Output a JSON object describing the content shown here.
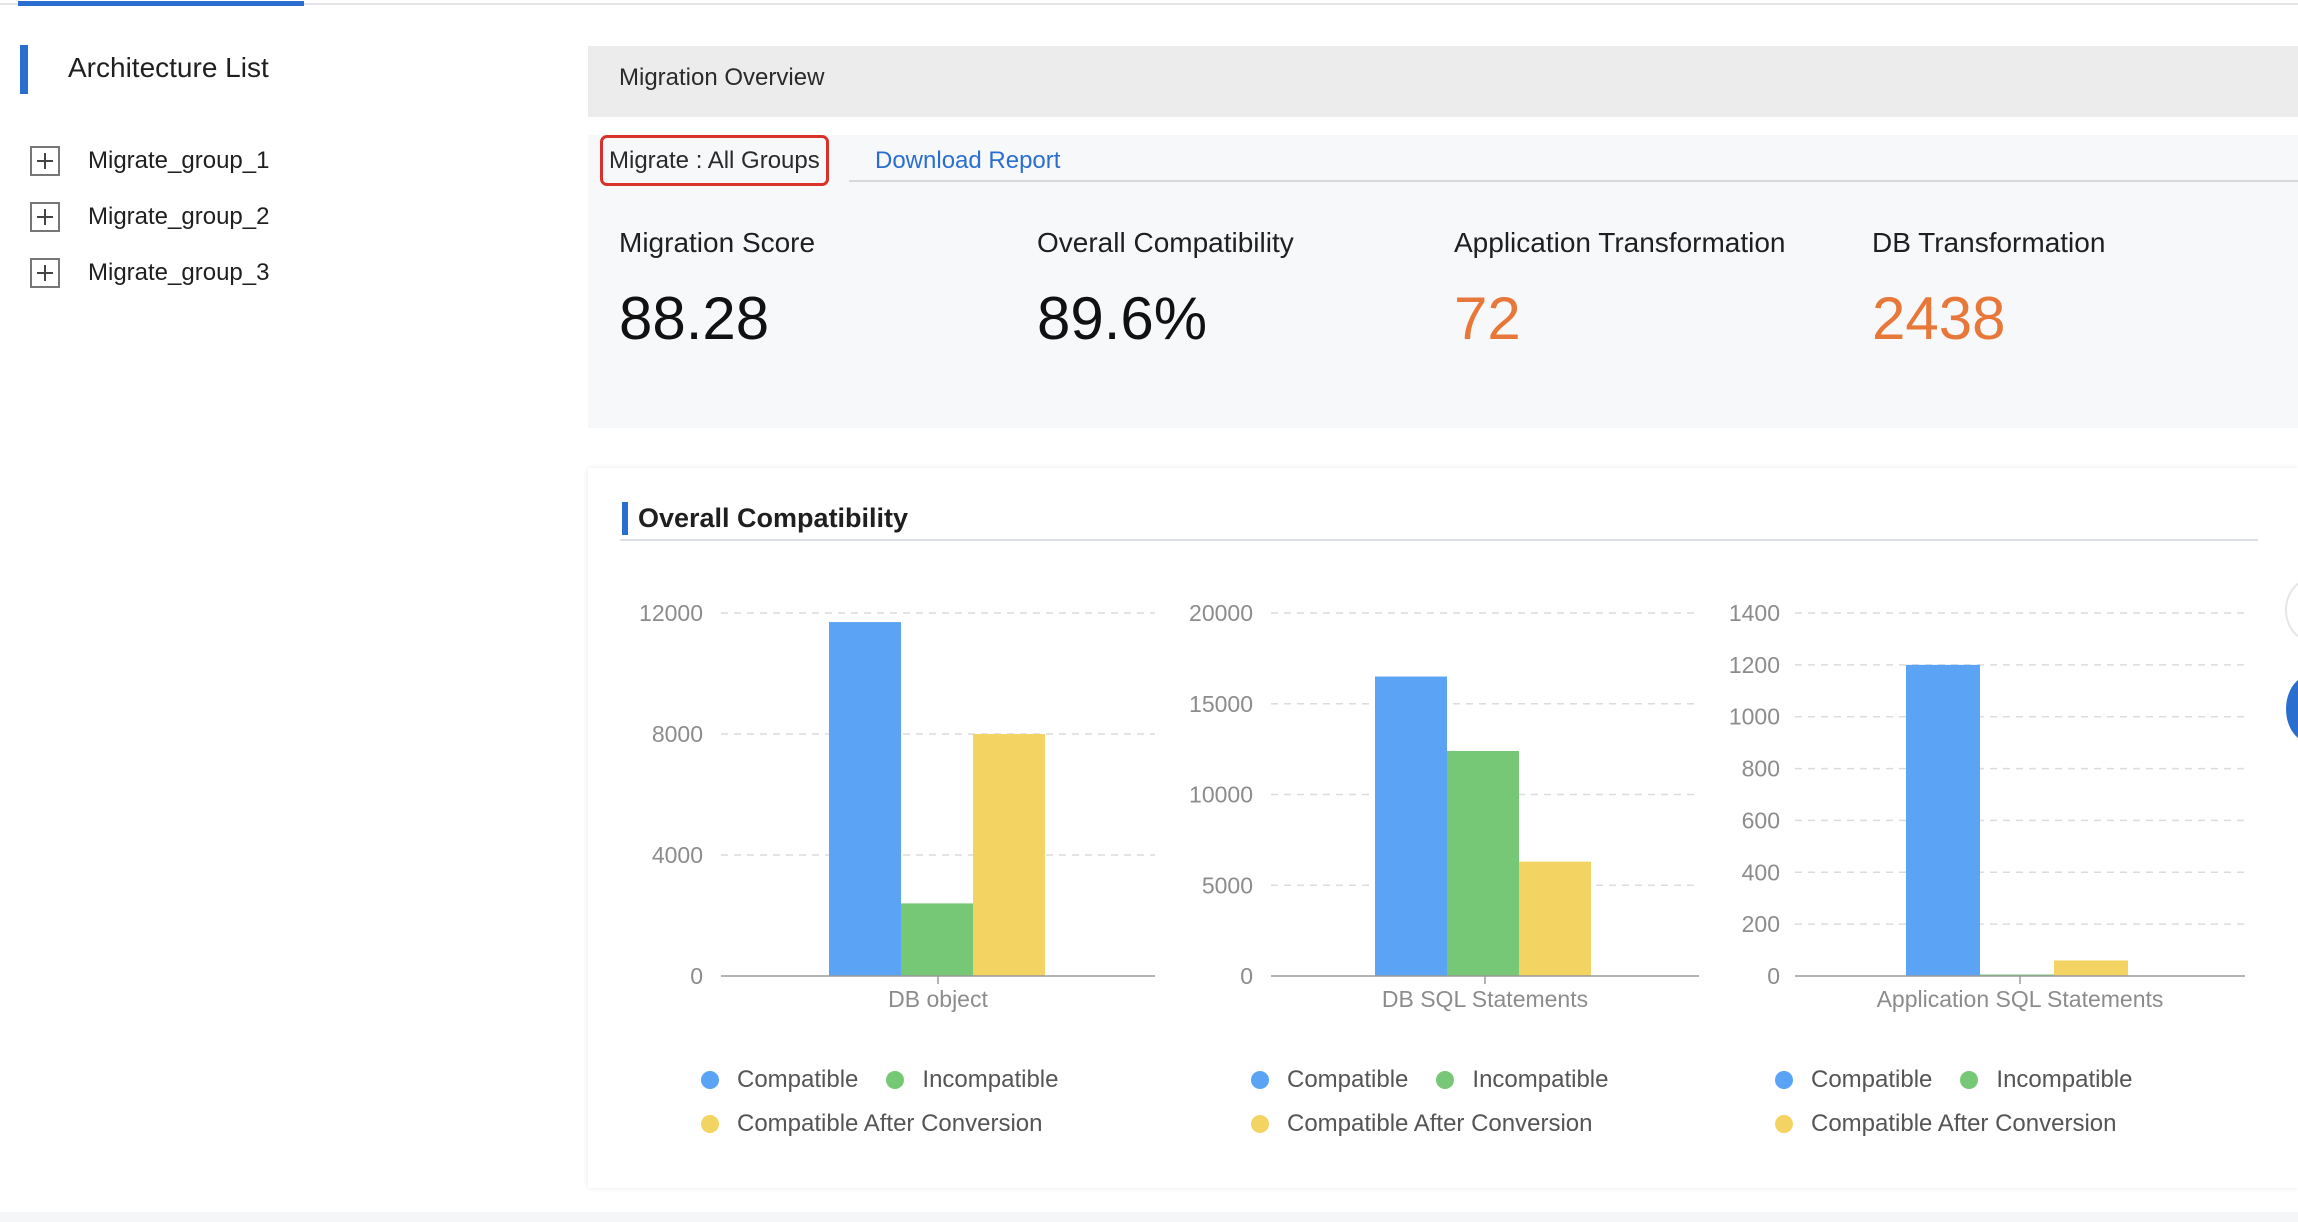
{
  "sidebar": {
    "title": "Architecture List",
    "items": [
      {
        "label": "Migrate_group_1"
      },
      {
        "label": "Migrate_group_2"
      },
      {
        "label": "Migrate_group_3"
      }
    ]
  },
  "overview": {
    "title": "Migration Overview",
    "filter_label": "Migrate : All Groups",
    "download_label": "Download Report",
    "metrics": [
      {
        "label": "Migration Score",
        "value": "88.28"
      },
      {
        "label": "Overall Compatibility",
        "value": "89.6%"
      },
      {
        "label": "Application Transformation",
        "value": "72"
      },
      {
        "label": "DB Transformation",
        "value": "2438"
      }
    ]
  },
  "colors": {
    "accent": "#2a6fd0",
    "highlight_value": "#e8783a",
    "compatible": "#5ba3f5",
    "incompatible": "#76c776",
    "compatible_after_conversion": "#f3d462",
    "filter_border": "#d8322a"
  },
  "compat": {
    "title": "Overall Compatibility"
  },
  "chart_data": [
    {
      "type": "bar",
      "categories": [
        "DB object"
      ],
      "series": [
        {
          "name": "Compatible",
          "values": [
            11700
          ]
        },
        {
          "name": "Incompatible",
          "values": [
            2400
          ]
        },
        {
          "name": "Compatible After Conversion",
          "values": [
            8000
          ]
        }
      ],
      "yticks": [
        "0",
        "4000",
        "8000",
        "12000"
      ],
      "ylim": [
        0,
        12000
      ],
      "grid": true,
      "legend": "bottom"
    },
    {
      "type": "bar",
      "categories": [
        "DB SQL Statements"
      ],
      "series": [
        {
          "name": "Compatible",
          "values": [
            16500
          ]
        },
        {
          "name": "Incompatible",
          "values": [
            12400
          ]
        },
        {
          "name": "Compatible After Conversion",
          "values": [
            6300
          ]
        }
      ],
      "yticks": [
        "0",
        "5000",
        "10000",
        "15000",
        "20000"
      ],
      "ylim": [
        0,
        20000
      ],
      "grid": true,
      "legend": "bottom"
    },
    {
      "type": "bar",
      "categories": [
        "Application SQL Statements"
      ],
      "series": [
        {
          "name": "Compatible",
          "values": [
            1200
          ]
        },
        {
          "name": "Incompatible",
          "values": [
            0
          ]
        },
        {
          "name": "Compatible After Conversion",
          "values": [
            60
          ]
        }
      ],
      "yticks": [
        "0",
        "200",
        "400",
        "600",
        "800",
        "1000",
        "1200",
        "1400"
      ],
      "ylim": [
        0,
        1400
      ],
      "grid": true,
      "legend": "bottom"
    }
  ]
}
